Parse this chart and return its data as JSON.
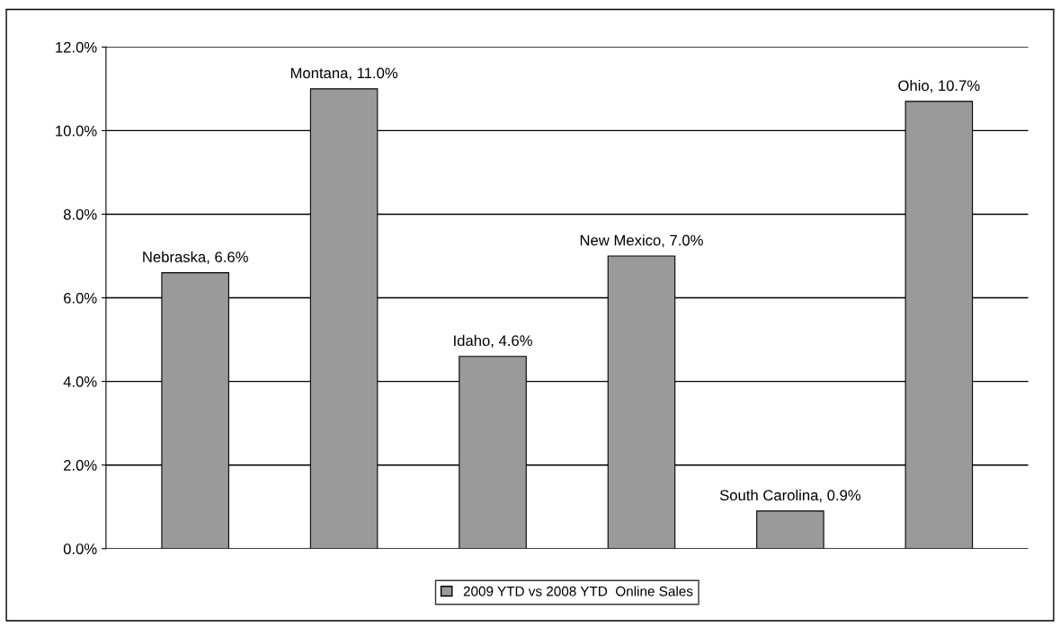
{
  "chart_data": {
    "type": "bar",
    "categories": [
      null,
      null,
      null,
      null,
      null,
      null
    ],
    "series": [
      {
        "name": "2009 YTD vs 2008 YTD  Online Sales",
        "color": "#9a9a9a",
        "values": [
          6.6,
          11.0,
          4.6,
          7.0,
          0.9,
          10.7
        ],
        "value_labels": [
          "Nebraska, 6.6%",
          "Montana, 11.0%",
          "Idaho, 4.6%",
          "New Mexico, 7.0%",
          "South Carolina, 0.9%",
          "Ohio, 10.7%"
        ]
      }
    ],
    "ylim": [
      0,
      12
    ],
    "yticks": [
      {
        "value": 0,
        "label": "0.0%"
      },
      {
        "value": 2,
        "label": "2.0%"
      },
      {
        "value": 4,
        "label": "4.0%"
      },
      {
        "value": 6,
        "label": "6.0%"
      },
      {
        "value": 8,
        "label": "8.0%"
      },
      {
        "value": 10,
        "label": "10.0%"
      },
      {
        "value": 12,
        "label": "12.0%"
      }
    ],
    "grid": "y",
    "legend": "bottom"
  }
}
